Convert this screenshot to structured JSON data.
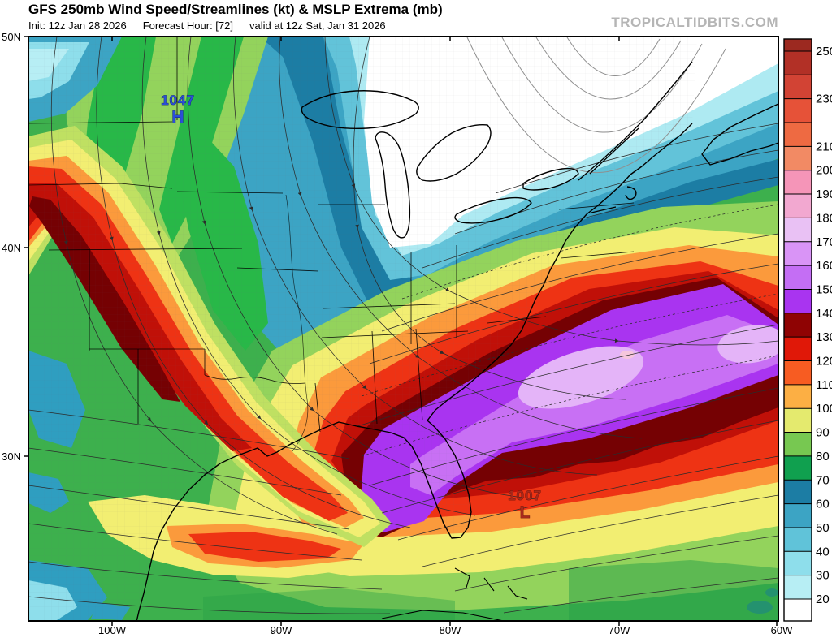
{
  "header": {
    "title": "GFS 250mb Wind Speed/Streamlines (kt) & MSLP Extrema (mb)",
    "init": "Init: 12z Jan 28 2026",
    "forecast_hour": "Forecast Hour: [72]",
    "valid": "valid at 12z Sat, Jan 31 2026",
    "watermark": "TROPICALTIDBITS.COM"
  },
  "map": {
    "lat_labels": [
      "50N",
      "40N",
      "30N"
    ],
    "lon_labels": [
      "100W",
      "90W",
      "80W",
      "70W",
      "60W"
    ],
    "high": {
      "value": "1047",
      "symbol": "H",
      "color": "#2b4fd7"
    },
    "low": {
      "value": "1007",
      "symbol": "L",
      "color": "#a8291c"
    }
  },
  "colorbar": {
    "units": "kt",
    "labels": [
      250,
      230,
      210,
      200,
      190,
      180,
      170,
      160,
      150,
      140,
      130,
      120,
      110,
      100,
      90,
      80,
      70,
      60,
      50,
      40,
      30,
      20
    ],
    "below_min_color": "#ffffff",
    "cells": [
      {
        "from": 20,
        "color": "#b7eef4"
      },
      {
        "from": 30,
        "color": "#8edeeb"
      },
      {
        "from": 40,
        "color": "#60c3d9"
      },
      {
        "from": 50,
        "color": "#3ca4c4"
      },
      {
        "from": 60,
        "color": "#1c7da4"
      },
      {
        "from": 70,
        "color": "#10a04f"
      },
      {
        "from": 80,
        "color": "#77c851"
      },
      {
        "from": 90,
        "color": "#e4ea6e"
      },
      {
        "from": 100,
        "color": "#fcaf44"
      },
      {
        "from": 110,
        "color": "#f75c22"
      },
      {
        "from": 120,
        "color": "#e01808"
      },
      {
        "from": 130,
        "color": "#8f0303"
      },
      {
        "from": 140,
        "color": "#a934f0"
      },
      {
        "from": 150,
        "color": "#c46ef4"
      },
      {
        "from": 160,
        "color": "#d994f6"
      },
      {
        "from": 170,
        "color": "#e9c1f4"
      },
      {
        "from": 180,
        "color": "#f2a8d0"
      },
      {
        "from": 190,
        "color": "#f595b8"
      },
      {
        "from": 200,
        "color": "#f28a64"
      },
      {
        "from": 210,
        "color": "#ee6a42"
      },
      {
        "from": 220,
        "color": "#e65238"
      },
      {
        "from": 230,
        "color": "#d24334"
      },
      {
        "from": 240,
        "color": "#b23026"
      },
      {
        "from": 250,
        "color": "#9c2920"
      }
    ]
  }
}
